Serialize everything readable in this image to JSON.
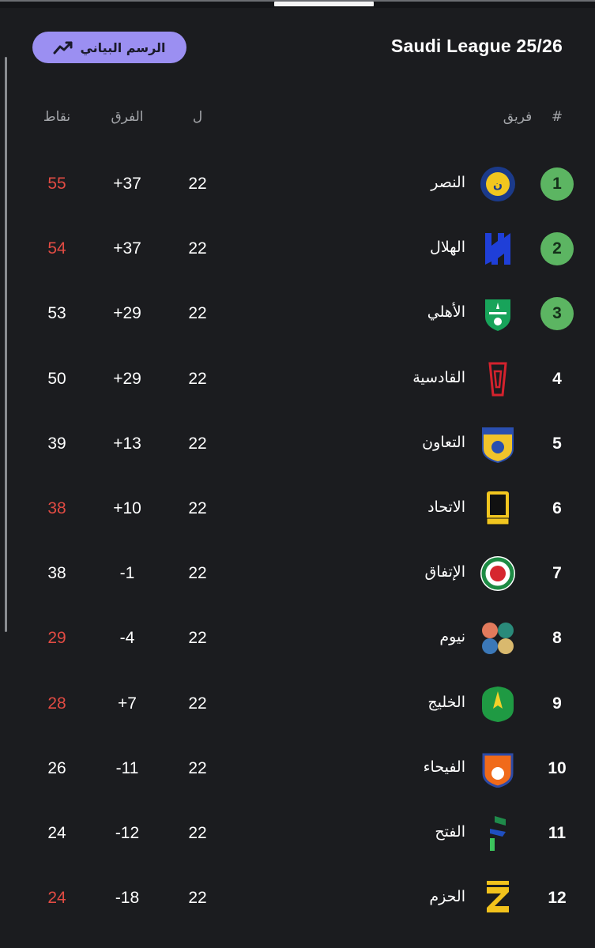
{
  "header": {
    "league_title": "Saudi League 25/26",
    "chart_button_label": "الرسم البياني",
    "chart_button_icon": "trend-line-icon"
  },
  "columns": {
    "rank": "#",
    "team": "فريق",
    "played": "ل",
    "goal_diff": "الفرق",
    "points": "نقاط"
  },
  "colors": {
    "background": "#1b1c1f",
    "qualification": "#5cb562",
    "points_highlight": "#e14b43",
    "accent_button": "#9b8ff2"
  },
  "rows": [
    {
      "rank": "1",
      "team": "النصر",
      "played": "22",
      "gd": "+37",
      "pts": "55",
      "qual": true,
      "pts_red": true,
      "logo": "al-nassr-logo"
    },
    {
      "rank": "2",
      "team": "الهلال",
      "played": "22",
      "gd": "+37",
      "pts": "54",
      "qual": true,
      "pts_red": true,
      "logo": "al-hilal-logo"
    },
    {
      "rank": "3",
      "team": "الأهلي",
      "played": "22",
      "gd": "+29",
      "pts": "53",
      "qual": true,
      "pts_red": false,
      "logo": "al-ahli-logo"
    },
    {
      "rank": "4",
      "team": "القادسية",
      "played": "22",
      "gd": "+29",
      "pts": "50",
      "qual": false,
      "pts_red": false,
      "logo": "al-qadsiah-logo"
    },
    {
      "rank": "5",
      "team": "التعاون",
      "played": "22",
      "gd": "+13",
      "pts": "39",
      "qual": false,
      "pts_red": false,
      "logo": "al-taawoun-logo"
    },
    {
      "rank": "6",
      "team": "الاتحاد",
      "played": "22",
      "gd": "+10",
      "pts": "38",
      "qual": false,
      "pts_red": true,
      "logo": "al-ittihad-logo"
    },
    {
      "rank": "7",
      "team": "الإتفاق",
      "played": "22",
      "gd": "-1",
      "pts": "38",
      "qual": false,
      "pts_red": false,
      "logo": "al-ettifaq-logo"
    },
    {
      "rank": "8",
      "team": "نيوم",
      "played": "22",
      "gd": "-4",
      "pts": "29",
      "qual": false,
      "pts_red": true,
      "logo": "neom-logo"
    },
    {
      "rank": "9",
      "team": "الخليج",
      "played": "22",
      "gd": "+7",
      "pts": "28",
      "qual": false,
      "pts_red": true,
      "logo": "al-khaleej-logo"
    },
    {
      "rank": "10",
      "team": "الفيحاء",
      "played": "22",
      "gd": "-11",
      "pts": "26",
      "qual": false,
      "pts_red": false,
      "logo": "al-fayha-logo"
    },
    {
      "rank": "11",
      "team": "الفتح",
      "played": "22",
      "gd": "-12",
      "pts": "24",
      "qual": false,
      "pts_red": false,
      "logo": "al-fateh-logo"
    },
    {
      "rank": "12",
      "team": "الحزم",
      "played": "22",
      "gd": "-18",
      "pts": "24",
      "qual": false,
      "pts_red": true,
      "logo": "al-hazem-logo"
    }
  ]
}
